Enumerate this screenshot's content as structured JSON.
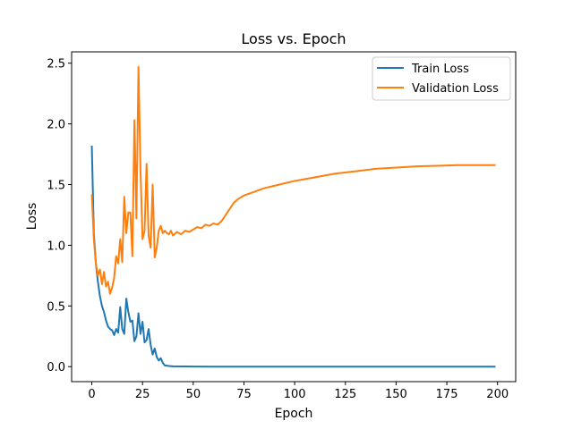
{
  "chart_data": {
    "type": "line",
    "title": "Loss vs. Epoch",
    "xlabel": "Epoch",
    "ylabel": "Loss",
    "xlim": [
      -9.95,
      208.95
    ],
    "ylim": [
      -0.1235,
      2.5935
    ],
    "xticks": [
      0,
      25,
      50,
      75,
      100,
      125,
      150,
      175,
      200
    ],
    "yticks": [
      0.0,
      0.5,
      1.0,
      1.5,
      2.0,
      2.5
    ],
    "ytick_labels": [
      "0.0",
      "0.5",
      "1.0",
      "1.5",
      "2.0",
      "2.5"
    ],
    "grid": false,
    "legend_position": "top-right",
    "series": [
      {
        "name": "Train Loss",
        "color": "#1f77b4",
        "points": [
          [
            0,
            1.82
          ],
          [
            1,
            1.1
          ],
          [
            2,
            0.85
          ],
          [
            3,
            0.7
          ],
          [
            4,
            0.58
          ],
          [
            5,
            0.5
          ],
          [
            6,
            0.45
          ],
          [
            7,
            0.38
          ],
          [
            8,
            0.33
          ],
          [
            9,
            0.31
          ],
          [
            10,
            0.3
          ],
          [
            11,
            0.26
          ],
          [
            12,
            0.31
          ],
          [
            13,
            0.28
          ],
          [
            14,
            0.49
          ],
          [
            15,
            0.31
          ],
          [
            16,
            0.27
          ],
          [
            17,
            0.56
          ],
          [
            18,
            0.45
          ],
          [
            19,
            0.37
          ],
          [
            20,
            0.38
          ],
          [
            21,
            0.21
          ],
          [
            22,
            0.25
          ],
          [
            23,
            0.44
          ],
          [
            24,
            0.27
          ],
          [
            25,
            0.37
          ],
          [
            26,
            0.2
          ],
          [
            27,
            0.22
          ],
          [
            28,
            0.31
          ],
          [
            29,
            0.18
          ],
          [
            30,
            0.1
          ],
          [
            31,
            0.15
          ],
          [
            32,
            0.08
          ],
          [
            33,
            0.05
          ],
          [
            34,
            0.07
          ],
          [
            35,
            0.03
          ],
          [
            36,
            0.01
          ],
          [
            38,
            0.005
          ],
          [
            40,
            0.003
          ],
          [
            45,
            0.002
          ],
          [
            50,
            0.001
          ],
          [
            60,
            0.0
          ],
          [
            80,
            0.0
          ],
          [
            100,
            0.0
          ],
          [
            125,
            0.0
          ],
          [
            150,
            0.0
          ],
          [
            175,
            0.0
          ],
          [
            199,
            0.0
          ]
        ]
      },
      {
        "name": "Validation Loss",
        "color": "#ff7f0e",
        "points": [
          [
            0,
            1.42
          ],
          [
            1,
            1.05
          ],
          [
            2,
            0.85
          ],
          [
            3,
            0.75
          ],
          [
            4,
            0.8
          ],
          [
            5,
            0.68
          ],
          [
            6,
            0.78
          ],
          [
            7,
            0.66
          ],
          [
            8,
            0.7
          ],
          [
            9,
            0.6
          ],
          [
            10,
            0.65
          ],
          [
            11,
            0.73
          ],
          [
            12,
            0.91
          ],
          [
            13,
            0.85
          ],
          [
            14,
            1.05
          ],
          [
            15,
            0.86
          ],
          [
            16,
            1.4
          ],
          [
            17,
            1.1
          ],
          [
            18,
            1.27
          ],
          [
            19,
            1.27
          ],
          [
            20,
            0.91
          ],
          [
            21,
            2.03
          ],
          [
            22,
            1.22
          ],
          [
            23,
            2.47
          ],
          [
            24,
            1.62
          ],
          [
            25,
            1.05
          ],
          [
            26,
            1.12
          ],
          [
            27,
            1.67
          ],
          [
            28,
            1.08
          ],
          [
            29,
            0.98
          ],
          [
            30,
            1.5
          ],
          [
            31,
            0.9
          ],
          [
            32,
            0.98
          ],
          [
            33,
            1.12
          ],
          [
            34,
            1.16
          ],
          [
            35,
            1.1
          ],
          [
            36,
            1.12
          ],
          [
            37,
            1.1
          ],
          [
            38,
            1.09
          ],
          [
            39,
            1.12
          ],
          [
            40,
            1.08
          ],
          [
            42,
            1.11
          ],
          [
            44,
            1.09
          ],
          [
            46,
            1.12
          ],
          [
            48,
            1.11
          ],
          [
            50,
            1.13
          ],
          [
            52,
            1.15
          ],
          [
            54,
            1.14
          ],
          [
            56,
            1.17
          ],
          [
            58,
            1.16
          ],
          [
            60,
            1.18
          ],
          [
            62,
            1.17
          ],
          [
            64,
            1.2
          ],
          [
            66,
            1.25
          ],
          [
            68,
            1.3
          ],
          [
            70,
            1.35
          ],
          [
            72,
            1.38
          ],
          [
            75,
            1.41
          ],
          [
            80,
            1.44
          ],
          [
            85,
            1.47
          ],
          [
            90,
            1.49
          ],
          [
            95,
            1.51
          ],
          [
            100,
            1.53
          ],
          [
            110,
            1.56
          ],
          [
            120,
            1.59
          ],
          [
            130,
            1.61
          ],
          [
            140,
            1.63
          ],
          [
            150,
            1.64
          ],
          [
            160,
            1.65
          ],
          [
            170,
            1.655
          ],
          [
            180,
            1.66
          ],
          [
            190,
            1.66
          ],
          [
            199,
            1.66
          ]
        ]
      }
    ]
  }
}
